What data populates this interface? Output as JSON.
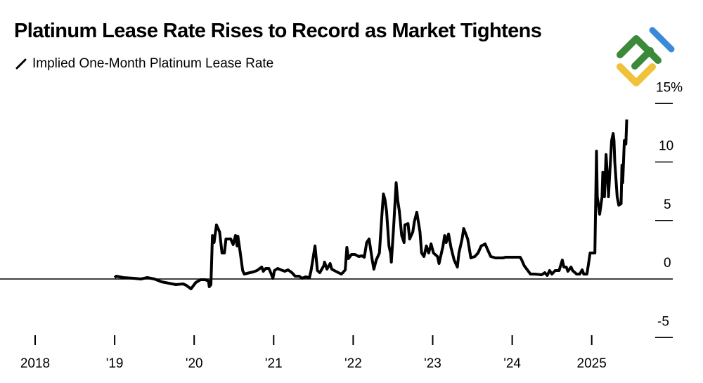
{
  "chart_data": {
    "type": "line",
    "title": "Platinum Lease Rate Rises to Record as Market Tightens",
    "series": [
      {
        "name": "Implied One-Month Platinum Lease Rate",
        "color": "#000000",
        "points": [
          [
            2019.0,
            0.12
          ],
          [
            2019.02,
            0.24
          ],
          [
            2019.11,
            0.12
          ],
          [
            2019.24,
            0.06
          ],
          [
            2019.33,
            0
          ],
          [
            2019.41,
            0.12
          ],
          [
            2019.5,
            0
          ],
          [
            2019.59,
            -0.24
          ],
          [
            2019.68,
            -0.36
          ],
          [
            2019.77,
            -0.48
          ],
          [
            2019.86,
            -0.42
          ],
          [
            2019.9,
            -0.54
          ],
          [
            2019.96,
            -0.84
          ],
          [
            2020.02,
            -0.3
          ],
          [
            2020.08,
            -0.06
          ],
          [
            2020.14,
            -0.06
          ],
          [
            2020.18,
            -0.18
          ],
          [
            2020.19,
            -0.66
          ],
          [
            2020.21,
            -0.48
          ],
          [
            2020.23,
            3.72
          ],
          [
            2020.25,
            3.12
          ],
          [
            2020.28,
            4.62
          ],
          [
            2020.32,
            4.02
          ],
          [
            2020.35,
            2.22
          ],
          [
            2020.38,
            2.22
          ],
          [
            2020.4,
            3.42
          ],
          [
            2020.46,
            3.42
          ],
          [
            2020.49,
            2.94
          ],
          [
            2020.52,
            3.72
          ],
          [
            2020.54,
            2.82
          ],
          [
            2020.55,
            3.66
          ],
          [
            2020.58,
            2.22
          ],
          [
            2020.61,
            0.72
          ],
          [
            2020.63,
            0.42
          ],
          [
            2020.7,
            0.54
          ],
          [
            2020.74,
            0.6
          ],
          [
            2020.79,
            0.72
          ],
          [
            2020.85,
            1.02
          ],
          [
            2020.87,
            0.66
          ],
          [
            2020.9,
            0.9
          ],
          [
            2020.94,
            0.9
          ],
          [
            2020.97,
            0.42
          ],
          [
            2020.99,
            0.06
          ],
          [
            2021.01,
            0.72
          ],
          [
            2021.05,
            0.9
          ],
          [
            2021.09,
            0.78
          ],
          [
            2021.14,
            0.66
          ],
          [
            2021.18,
            0.78
          ],
          [
            2021.23,
            0.54
          ],
          [
            2021.27,
            0.24
          ],
          [
            2021.32,
            0.24
          ],
          [
            2021.36,
            0.06
          ],
          [
            2021.4,
            0.18
          ],
          [
            2021.45,
            0.12
          ],
          [
            2021.47,
            0.72
          ],
          [
            2021.52,
            2.82
          ],
          [
            2021.55,
            0.72
          ],
          [
            2021.58,
            0.54
          ],
          [
            2021.63,
            1.14
          ],
          [
            2021.64,
            1.44
          ],
          [
            2021.67,
            0.84
          ],
          [
            2021.71,
            1.32
          ],
          [
            2021.73,
            0.84
          ],
          [
            2021.78,
            0.66
          ],
          [
            2021.85,
            0.42
          ],
          [
            2021.87,
            0.54
          ],
          [
            2021.9,
            0.78
          ],
          [
            2021.92,
            2.7
          ],
          [
            2021.94,
            1.74
          ],
          [
            2021.98,
            2.1
          ],
          [
            2022.02,
            2.1
          ],
          [
            2022.07,
            1.92
          ],
          [
            2022.11,
            1.98
          ],
          [
            2022.14,
            1.86
          ],
          [
            2022.17,
            3.12
          ],
          [
            2022.2,
            3.42
          ],
          [
            2022.24,
            1.62
          ],
          [
            2022.26,
            0.84
          ],
          [
            2022.29,
            1.62
          ],
          [
            2022.33,
            2.22
          ],
          [
            2022.36,
            5.34
          ],
          [
            2022.38,
            7.27
          ],
          [
            2022.4,
            6.79
          ],
          [
            2022.42,
            5.77
          ],
          [
            2022.45,
            2.82
          ],
          [
            2022.47,
            2.22
          ],
          [
            2022.48,
            1.44
          ],
          [
            2022.51,
            4.62
          ],
          [
            2022.54,
            8.23
          ],
          [
            2022.56,
            6.73
          ],
          [
            2022.58,
            5.83
          ],
          [
            2022.61,
            3.72
          ],
          [
            2022.64,
            3.12
          ],
          [
            2022.65,
            4.62
          ],
          [
            2022.69,
            4.74
          ],
          [
            2022.71,
            3.42
          ],
          [
            2022.75,
            4.02
          ],
          [
            2022.77,
            4.92
          ],
          [
            2022.8,
            5.71
          ],
          [
            2022.84,
            4.02
          ],
          [
            2022.86,
            2.22
          ],
          [
            2022.89,
            1.92
          ],
          [
            2022.92,
            2.82
          ],
          [
            2022.95,
            2.22
          ],
          [
            2022.98,
            3.0
          ],
          [
            2023.01,
            2.22
          ],
          [
            2023.06,
            1.92
          ],
          [
            2023.08,
            1.32
          ],
          [
            2023.13,
            2.82
          ],
          [
            2023.15,
            3.72
          ],
          [
            2023.17,
            3.12
          ],
          [
            2023.2,
            3.84
          ],
          [
            2023.23,
            2.7
          ],
          [
            2023.27,
            1.62
          ],
          [
            2023.31,
            1.02
          ],
          [
            2023.33,
            2.22
          ],
          [
            2023.37,
            3.42
          ],
          [
            2023.39,
            4.32
          ],
          [
            2023.44,
            3.42
          ],
          [
            2023.48,
            1.8
          ],
          [
            2023.53,
            1.92
          ],
          [
            2023.57,
            2.22
          ],
          [
            2023.61,
            2.82
          ],
          [
            2023.66,
            3.0
          ],
          [
            2023.69,
            2.52
          ],
          [
            2023.73,
            1.92
          ],
          [
            2023.79,
            1.8
          ],
          [
            2023.88,
            1.8
          ],
          [
            2023.92,
            1.86
          ],
          [
            2024.01,
            1.86
          ],
          [
            2024.1,
            1.86
          ],
          [
            2024.12,
            1.62
          ],
          [
            2024.15,
            1.14
          ],
          [
            2024.19,
            0.78
          ],
          [
            2024.23,
            0.42
          ],
          [
            2024.28,
            0.42
          ],
          [
            2024.37,
            0.36
          ],
          [
            2024.41,
            0.54
          ],
          [
            2024.44,
            0.3
          ],
          [
            2024.47,
            0.72
          ],
          [
            2024.5,
            0.42
          ],
          [
            2024.54,
            0.72
          ],
          [
            2024.59,
            0.72
          ],
          [
            2024.63,
            1.62
          ],
          [
            2024.65,
            1.02
          ],
          [
            2024.68,
            1.02
          ],
          [
            2024.7,
            0.66
          ],
          [
            2024.74,
            1.02
          ],
          [
            2024.76,
            0.72
          ],
          [
            2024.79,
            0.54
          ],
          [
            2024.81,
            0.42
          ],
          [
            2024.85,
            0.42
          ],
          [
            2024.88,
            0.78
          ],
          [
            2024.9,
            0.42
          ],
          [
            2024.94,
            0.42
          ],
          [
            2024.96,
            1.32
          ],
          [
            2024.98,
            2.22
          ],
          [
            2025.04,
            2.22
          ],
          [
            2025.06,
            10.93
          ],
          [
            2025.07,
            7.03
          ],
          [
            2025.1,
            5.53
          ],
          [
            2025.13,
            7.03
          ],
          [
            2025.14,
            9.13
          ],
          [
            2025.16,
            7.03
          ],
          [
            2025.18,
            10.63
          ],
          [
            2025.21,
            7.33
          ],
          [
            2025.21,
            7.03
          ],
          [
            2025.25,
            11.83
          ],
          [
            2025.27,
            12.43
          ],
          [
            2025.28,
            11.83
          ],
          [
            2025.29,
            10.03
          ],
          [
            2025.32,
            7.03
          ],
          [
            2025.34,
            6.31
          ],
          [
            2025.37,
            6.43
          ],
          [
            2025.38,
            9.73
          ],
          [
            2025.39,
            8.23
          ],
          [
            2025.41,
            11.83
          ],
          [
            2025.43,
            11.53
          ],
          [
            2025.44,
            13.63
          ]
        ]
      }
    ],
    "xlim": [
      2018,
      2025.8
    ],
    "ylim": [
      -5,
      15
    ],
    "x_ticks": [
      {
        "value": 2018,
        "label": "2018"
      },
      {
        "value": 2019,
        "label": "'19"
      },
      {
        "value": 2020,
        "label": "'20"
      },
      {
        "value": 2021,
        "label": "'21"
      },
      {
        "value": 2022,
        "label": "'22"
      },
      {
        "value": 2023,
        "label": "'23"
      },
      {
        "value": 2024,
        "label": "'24"
      },
      {
        "value": 2025,
        "label": "2025"
      }
    ],
    "y_ticks": [
      {
        "value": 15,
        "label": "15%"
      },
      {
        "value": 10,
        "label": "10"
      },
      {
        "value": 5,
        "label": "5"
      },
      {
        "value": 0,
        "label": "0"
      },
      {
        "value": -5,
        "label": "-5"
      }
    ],
    "y_axis_side": "right",
    "grid": false,
    "legend": "top-left"
  },
  "logo": {
    "colors": {
      "green": "#3a8a3a",
      "yellow": "#f0c23a",
      "blue": "#3a8ad8"
    }
  }
}
